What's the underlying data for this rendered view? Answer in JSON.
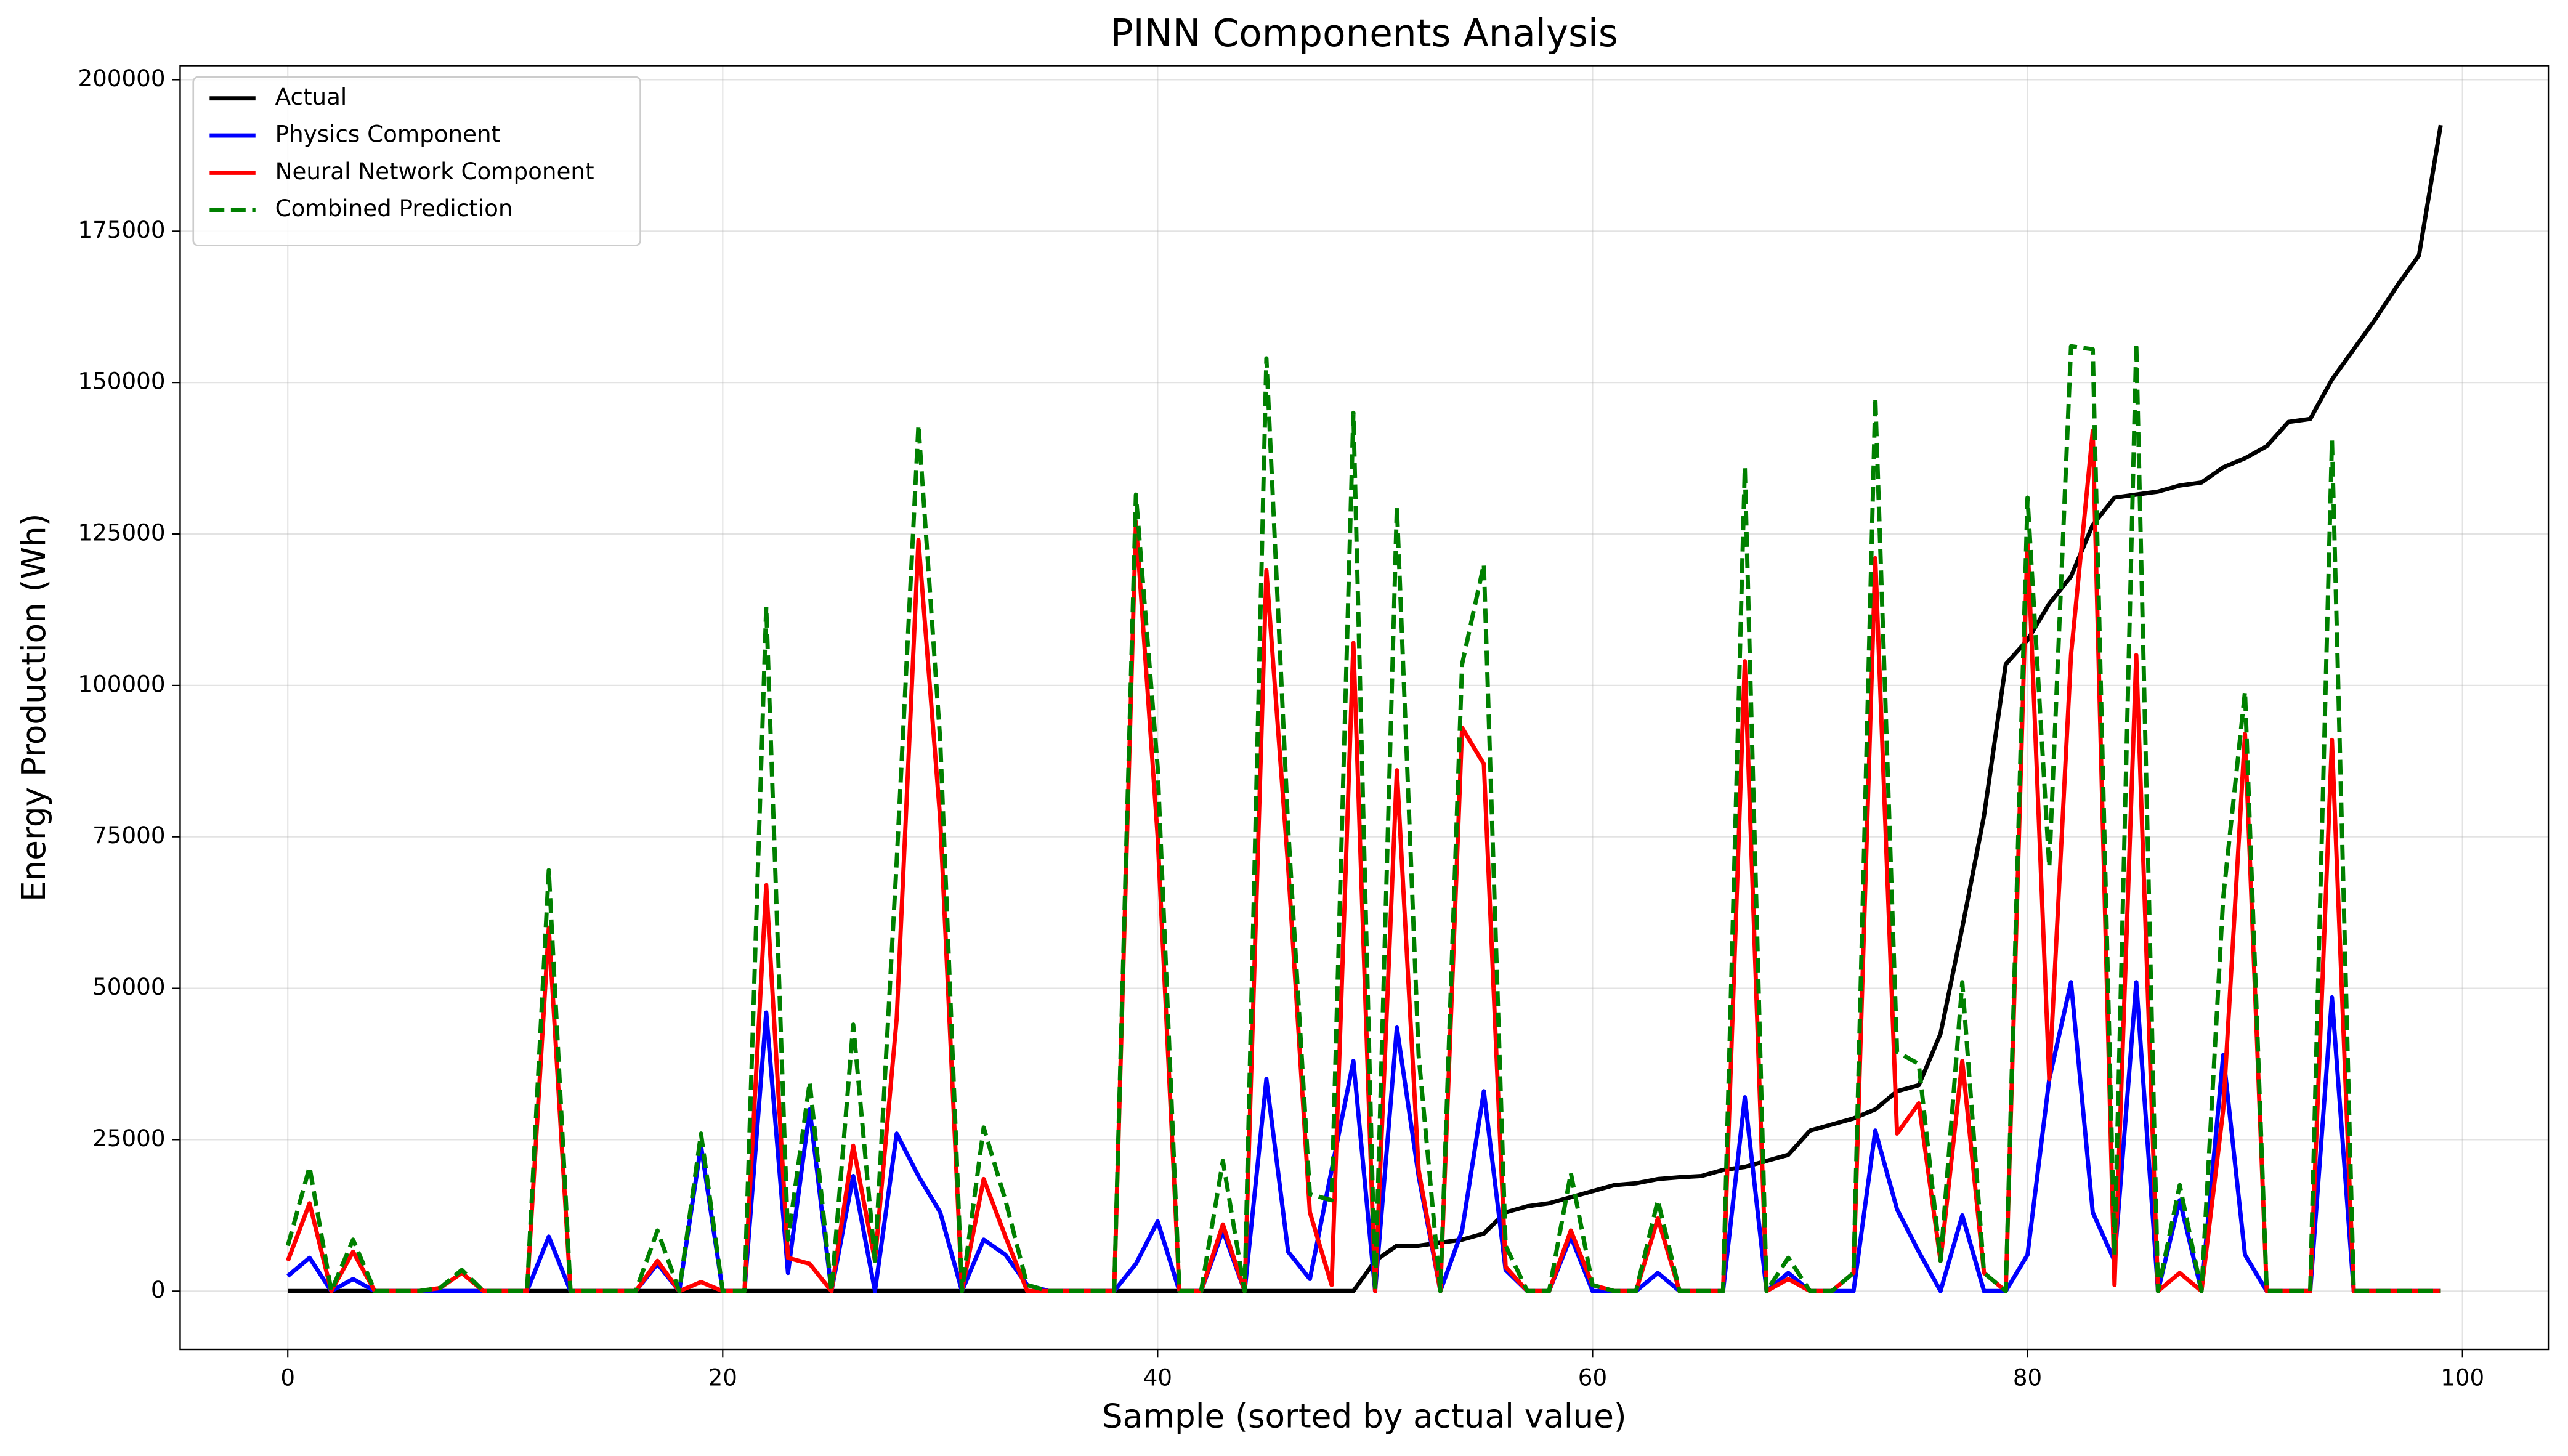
{
  "chart_data": {
    "type": "line",
    "title": "PINN Components Analysis",
    "x_label": "Sample (sorted by actual value)",
    "y_label": "Energy Production (Wh)",
    "x": [
      0,
      1,
      2,
      3,
      4,
      5,
      6,
      7,
      8,
      9,
      10,
      11,
      12,
      13,
      14,
      15,
      16,
      17,
      18,
      19,
      20,
      21,
      22,
      23,
      24,
      25,
      26,
      27,
      28,
      29,
      30,
      31,
      32,
      33,
      34,
      35,
      36,
      37,
      38,
      39,
      40,
      41,
      42,
      43,
      44,
      45,
      46,
      47,
      48,
      49,
      50,
      51,
      52,
      53,
      54,
      55,
      56,
      57,
      58,
      59,
      60,
      61,
      62,
      63,
      64,
      65,
      66,
      67,
      68,
      69,
      70,
      71,
      72,
      73,
      74,
      75,
      76,
      77,
      78,
      79,
      80,
      81,
      82,
      83,
      84,
      85,
      86,
      87,
      88,
      89,
      90,
      91,
      92,
      93,
      94,
      95,
      96,
      97,
      98,
      99
    ],
    "series": [
      {
        "name": "Actual",
        "color": "#000000",
        "dashed": false,
        "values": [
          0,
          0,
          0,
          0,
          0,
          0,
          0,
          0,
          0,
          0,
          0,
          0,
          0,
          0,
          0,
          0,
          0,
          0,
          0,
          0,
          0,
          0,
          0,
          0,
          0,
          0,
          0,
          0,
          0,
          0,
          0,
          0,
          0,
          0,
          0,
          0,
          0,
          0,
          0,
          0,
          0,
          0,
          0,
          0,
          0,
          0,
          0,
          0,
          0,
          0,
          5000,
          7500,
          7500,
          8000,
          8500,
          9500,
          13000,
          14000,
          14500,
          15500,
          16500,
          17500,
          17800,
          18500,
          18800,
          19000,
          20000,
          20500,
          21500,
          22500,
          26500,
          27500,
          28500,
          30000,
          33000,
          34000,
          42500,
          60000,
          78500,
          103500,
          107500,
          113500,
          118000,
          126500,
          131000,
          131500,
          132000,
          133000,
          133500,
          136000,
          137500,
          139500,
          143500,
          144000,
          150500,
          155500,
          160500,
          166000,
          171000,
          192500
        ]
      },
      {
        "name": "Physics Component",
        "color": "#0000ff",
        "dashed": false,
        "values": [
          2500,
          5500,
          0,
          2000,
          0,
          0,
          0,
          0,
          0,
          0,
          0,
          0,
          9000,
          0,
          0,
          0,
          0,
          4500,
          0,
          24000,
          0,
          0,
          46000,
          3000,
          30000,
          0,
          19000,
          0,
          26000,
          19000,
          13000,
          0,
          8500,
          6000,
          1000,
          0,
          0,
          0,
          0,
          4500,
          11500,
          0,
          0,
          10000,
          0,
          35000,
          6500,
          2000,
          20000,
          38000,
          0,
          43500,
          19000,
          0,
          10000,
          33000,
          3500,
          0,
          0,
          9000,
          0,
          0,
          0,
          3000,
          0,
          0,
          0,
          32000,
          0,
          3000,
          0,
          0,
          0,
          26500,
          13500,
          6500,
          0,
          12500,
          0,
          0,
          6000,
          35000,
          51000,
          13000,
          5000,
          51000,
          0,
          15000,
          0,
          39000,
          6000,
          0,
          0,
          0,
          48500,
          0,
          0,
          0,
          0,
          0
        ]
      },
      {
        "name": "Neural Network Component",
        "color": "#ff0000",
        "dashed": false,
        "values": [
          5000,
          14500,
          0,
          6500,
          0,
          0,
          0,
          500,
          3000,
          0,
          0,
          0,
          60000,
          0,
          0,
          0,
          0,
          5000,
          0,
          1500,
          0,
          0,
          67000,
          5500,
          4500,
          0,
          24000,
          5000,
          45000,
          124000,
          78000,
          0,
          18500,
          9000,
          0,
          0,
          0,
          0,
          0,
          127000,
          75000,
          0,
          0,
          11000,
          0,
          119000,
          70000,
          13000,
          1000,
          107000,
          0,
          86000,
          20000,
          0,
          93000,
          87000,
          4000,
          0,
          0,
          10000,
          1000,
          0,
          0,
          12000,
          0,
          0,
          0,
          104000,
          0,
          2000,
          0,
          0,
          3000,
          121000,
          26000,
          31000,
          5000,
          38000,
          3000,
          0,
          124000,
          35000,
          105000,
          142000,
          1000,
          105000,
          0,
          3000,
          0,
          30000,
          92000,
          0,
          0,
          0,
          91000,
          0,
          0,
          0,
          0,
          0
        ]
      },
      {
        "name": "Combined Prediction",
        "color": "#008000",
        "dashed": true,
        "values": [
          7500,
          20500,
          0,
          8500,
          0,
          0,
          0,
          500,
          3500,
          0,
          0,
          0,
          69500,
          0,
          0,
          0,
          0,
          10000,
          0,
          26000,
          0,
          0,
          113000,
          8500,
          34500,
          0,
          44000,
          5000,
          71000,
          143000,
          91000,
          0,
          27000,
          15000,
          1000,
          0,
          0,
          0,
          0,
          131500,
          86500,
          0,
          0,
          21500,
          0,
          154000,
          76500,
          16000,
          15000,
          145000,
          0,
          129500,
          39000,
          0,
          103500,
          120000,
          7500,
          0,
          0,
          19500,
          1000,
          0,
          0,
          15000,
          0,
          0,
          0,
          136000,
          0,
          5500,
          0,
          0,
          3000,
          147500,
          39500,
          37500,
          5000,
          51000,
          3000,
          0,
          131000,
          70000,
          156000,
          155500,
          6000,
          156500,
          0,
          17500,
          0,
          65000,
          99000,
          0,
          0,
          0,
          140500,
          0,
          0,
          0,
          0,
          0
        ]
      }
    ],
    "xlim": [
      -4.95,
      103.95
    ],
    "ylim": [
      -9635,
      202335
    ],
    "xticks": [
      0,
      20,
      40,
      60,
      80,
      100
    ],
    "yticks": [
      0,
      25000,
      50000,
      75000,
      100000,
      125000,
      150000,
      175000,
      200000
    ],
    "grid": true,
    "legend": "upper left"
  }
}
